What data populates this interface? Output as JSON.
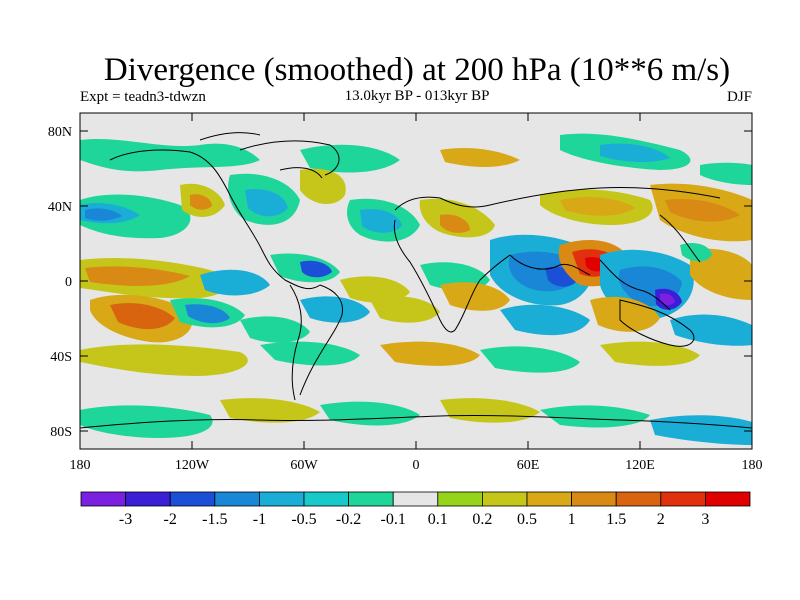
{
  "title": "Divergence (smoothed) at 200 hPa (10**6 m/s)",
  "subtitle_left": "Expt = teadn3-tdwzn",
  "subtitle_center": "13.0kyr BP - 013kyr BP",
  "subtitle_right": "DJF",
  "y_axis_labels": [
    "80N",
    "40N",
    "0",
    "40S",
    "80S"
  ],
  "x_axis_labels": [
    "180",
    "120W",
    "60W",
    "0",
    "60E",
    "120E",
    "180"
  ],
  "colorbar": {
    "colors": [
      "#7b1fe0",
      "#3a1fd6",
      "#1b4fd8",
      "#1a86d6",
      "#1aaed6",
      "#17c9c9",
      "#1ed69a",
      "#e6e6e6",
      "#96d41a",
      "#c6c61a",
      "#d8a816",
      "#d88a14",
      "#d86410",
      "#e0300e",
      "#e00000"
    ],
    "labels": [
      "-3",
      "-2",
      "-1.5",
      "-1",
      "-0.5",
      "-0.2",
      "-0.1",
      "0.1",
      "0.2",
      "0.5",
      "1",
      "1.5",
      "2",
      "3"
    ]
  }
}
